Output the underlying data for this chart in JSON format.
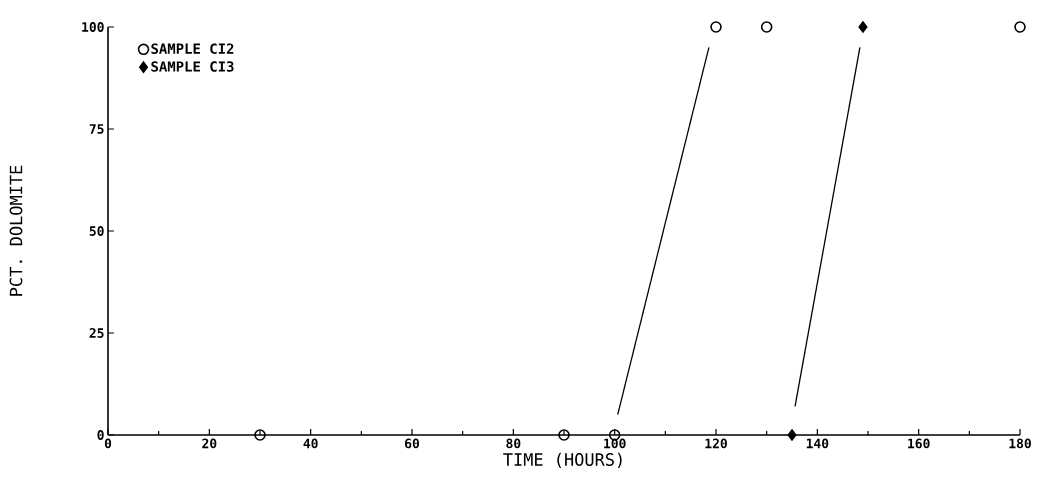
{
  "chart_data": {
    "type": "scatter",
    "xlabel": "TIME (HOURS)",
    "ylabel": "PCT. DOLOMITE",
    "xlim": [
      0,
      180
    ],
    "ylim": [
      0,
      100
    ],
    "xticks": [
      0,
      20,
      40,
      60,
      80,
      100,
      120,
      140,
      160,
      180
    ],
    "yticks": [
      0,
      25,
      50,
      75,
      100
    ],
    "legend": "top left",
    "grid": false,
    "series": [
      {
        "name": "SAMPLE CI2",
        "marker": "circle",
        "color": "#000000",
        "x": [
          30,
          90,
          100,
          120,
          130,
          180
        ],
        "values": [
          0,
          0,
          0,
          100,
          100,
          100
        ]
      },
      {
        "name": "SAMPLE CI3",
        "marker": "diamond",
        "color": "#000000",
        "x": [
          135,
          149
        ],
        "values": [
          0,
          100
        ]
      },
      {
        "type": "line",
        "marker": "none",
        "color": "#000000",
        "x": [
          100.6,
          118.6
        ],
        "values": [
          5,
          95
        ]
      },
      {
        "type": "line",
        "marker": "none",
        "color": "#000000",
        "x": [
          135.6,
          148.4
        ],
        "values": [
          7,
          95
        ]
      }
    ]
  }
}
